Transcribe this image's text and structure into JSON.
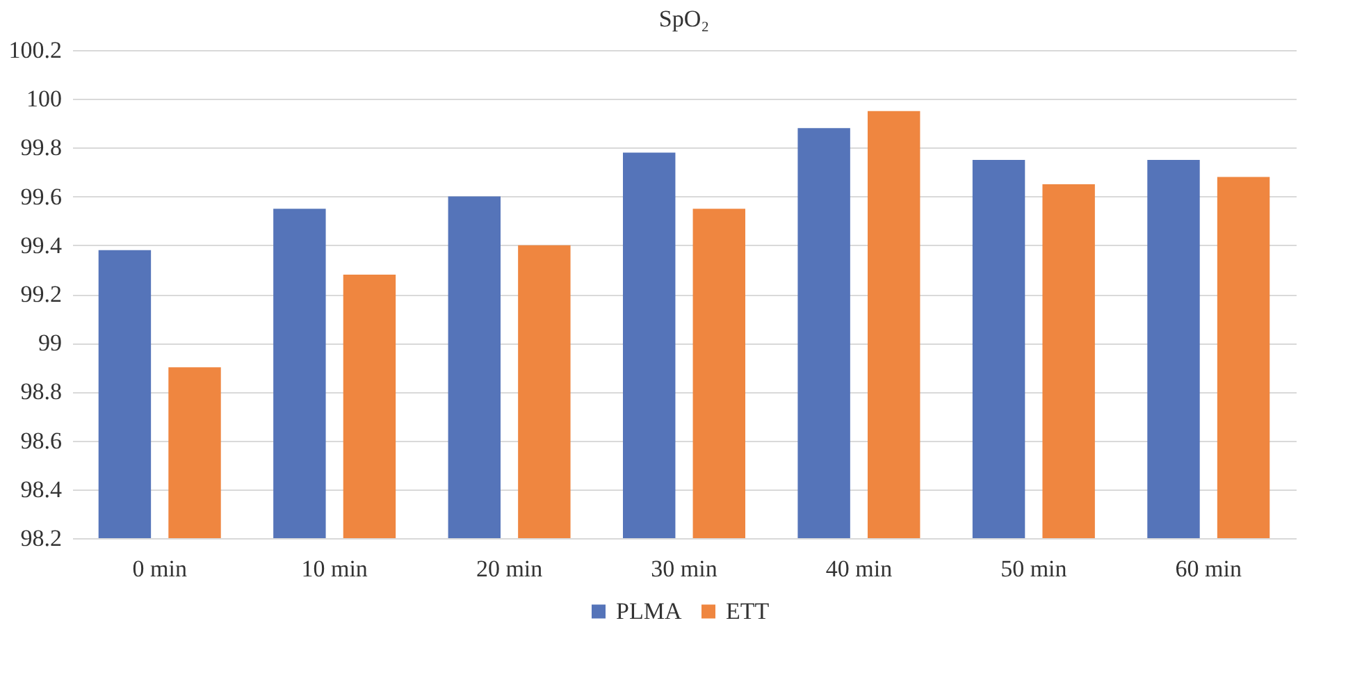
{
  "chart_data": {
    "type": "bar",
    "title": "SpO₂",
    "categories": [
      "0 min",
      "10 min",
      "20 min",
      "30 min",
      "40 min",
      "50 min",
      "60 min"
    ],
    "series": [
      {
        "name": "PLMA",
        "color": "#5574b9",
        "values": [
          99.38,
          99.55,
          99.6,
          99.78,
          99.88,
          99.75,
          99.75
        ]
      },
      {
        "name": "ETT",
        "color": "#ef8640",
        "values": [
          98.9,
          99.28,
          99.4,
          99.55,
          99.95,
          99.65,
          99.68
        ]
      }
    ],
    "ylim": [
      98.2,
      100.2
    ],
    "yticks": [
      98.2,
      98.4,
      98.6,
      98.8,
      99,
      99.2,
      99.4,
      99.6,
      99.8,
      100,
      100.2
    ],
    "grid": "y",
    "legend": "bottom"
  }
}
